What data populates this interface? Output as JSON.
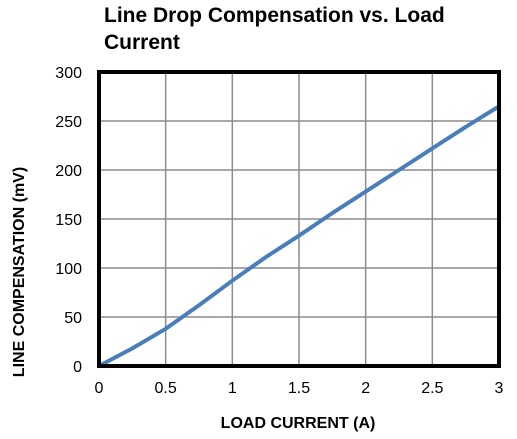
{
  "chart_data": {
    "type": "line",
    "title_lines": [
      "Line Drop Compensation vs. Load",
      "Current"
    ],
    "xlabel": "LOAD CURRENT  (A)",
    "ylabel": "LINE COMPENSATION  (mV)",
    "xlim": [
      0,
      3
    ],
    "ylim": [
      0,
      300
    ],
    "x_ticks": [
      0,
      0.5,
      1,
      1.5,
      2,
      2.5,
      3
    ],
    "y_ticks": [
      0,
      50,
      100,
      150,
      200,
      250,
      300
    ],
    "x_tick_labels": [
      "0",
      "0.5",
      "1",
      "1.5",
      "2",
      "2.5",
      "3"
    ],
    "y_tick_labels": [
      "0",
      "50",
      "100",
      "150",
      "200",
      "250",
      "300"
    ],
    "grid": true,
    "legend": "none",
    "series": [
      {
        "color": "#4a7ebb",
        "x": [
          0,
          0.25,
          0.5,
          0.75,
          1,
          1.25,
          1.5,
          1.75,
          2,
          2.25,
          2.5,
          2.75,
          3
        ],
        "y": [
          0,
          18,
          38,
          62,
          87,
          111,
          133,
          156,
          178,
          200,
          222,
          244,
          265
        ]
      }
    ]
  }
}
